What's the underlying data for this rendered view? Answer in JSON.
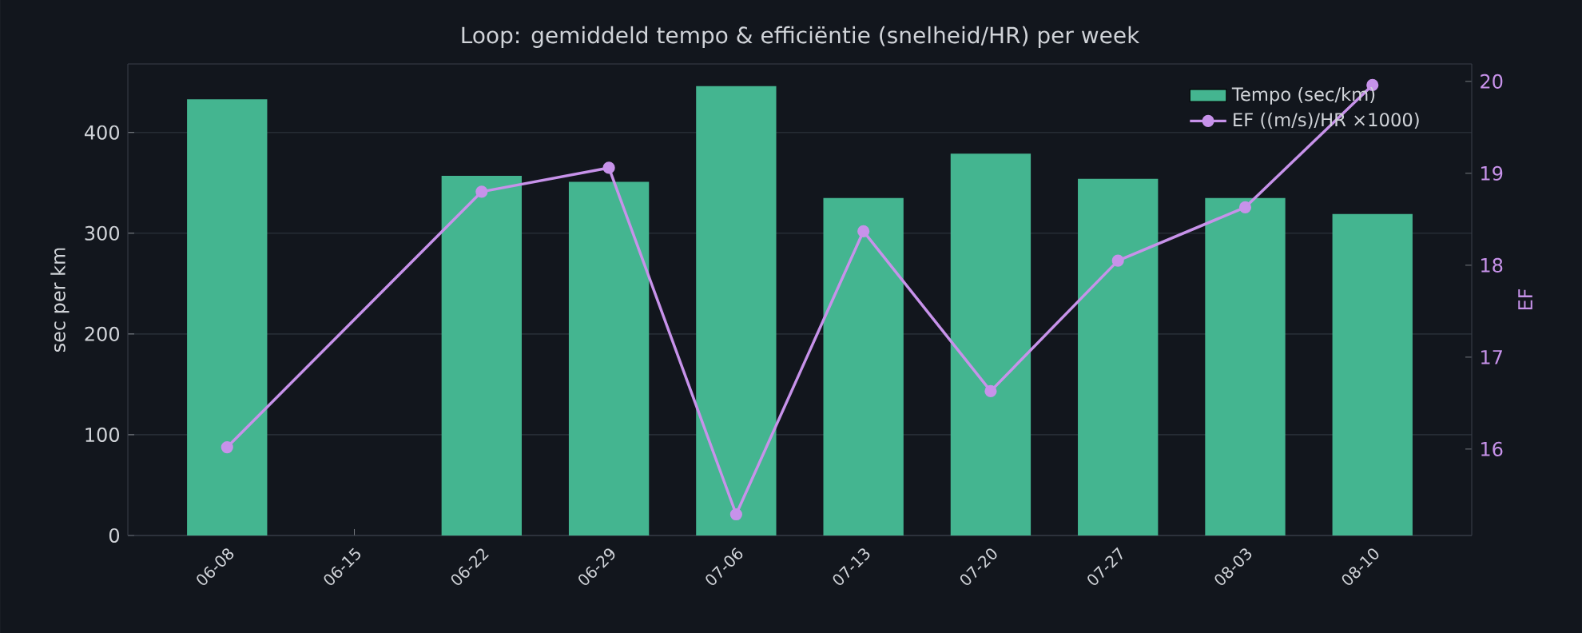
{
  "chart_data": {
    "type": "bar",
    "title": "Loop: gemiddeld tempo & efficiëntie (snelheid/HR) per week",
    "ylabel": "sec per km",
    "y2label": "EF",
    "categories": [
      "06-08",
      "06-15",
      "06-22",
      "06-29",
      "07-06",
      "07-13",
      "07-20",
      "07-27",
      "08-03",
      "08-10"
    ],
    "series": [
      {
        "name": "Tempo (sec/km)",
        "color": "#44b590",
        "values": [
          433,
          null,
          357,
          351,
          446,
          335,
          379,
          354,
          335,
          319
        ]
      },
      {
        "name": "EF ((m/s)/HR ×1000)",
        "type": "line",
        "axis": "y2",
        "color": "#c792ea",
        "marker": "circle",
        "values": [
          16.02,
          null,
          18.8,
          19.06,
          15.29,
          18.37,
          16.63,
          18.05,
          18.63,
          19.96
        ]
      }
    ],
    "ylim": [
      0,
      468
    ],
    "yticks": [
      0,
      100,
      200,
      300,
      400
    ],
    "y2lim": [
      15.06,
      20.19
    ],
    "y2ticks": [
      16,
      17,
      18,
      19,
      20
    ],
    "grid": "y",
    "legend": "top right"
  }
}
